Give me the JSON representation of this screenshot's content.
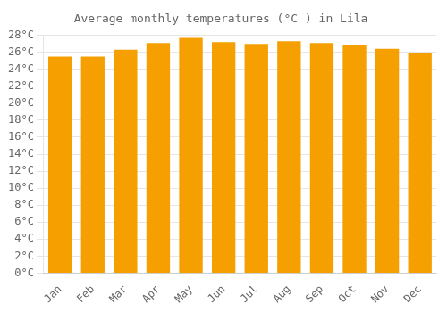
{
  "chart_data": {
    "type": "bar",
    "title": "Average monthly temperatures (°C ) in Lila",
    "categories": [
      "Jan",
      "Feb",
      "Mar",
      "Apr",
      "May",
      "Jun",
      "Jul",
      "Aug",
      "Sep",
      "Oct",
      "Nov",
      "Dec"
    ],
    "values": [
      25.5,
      25.5,
      26.3,
      27.1,
      27.7,
      27.2,
      27.0,
      27.3,
      27.1,
      26.9,
      26.4,
      25.9
    ],
    "color": "#F5A000",
    "ylim": [
      0,
      28
    ],
    "yticks": [
      {
        "value": 0,
        "label": "0°C"
      },
      {
        "value": 2,
        "label": "2°C"
      },
      {
        "value": 4,
        "label": "4°C"
      },
      {
        "value": 6,
        "label": "6°C"
      },
      {
        "value": 8,
        "label": "8°C"
      },
      {
        "value": 10,
        "label": "10°C"
      },
      {
        "value": 12,
        "label": "12°C"
      },
      {
        "value": 14,
        "label": "14°C"
      },
      {
        "value": 16,
        "label": "16°C"
      },
      {
        "value": 18,
        "label": "18°C"
      },
      {
        "value": 20,
        "label": "20°C"
      },
      {
        "value": 22,
        "label": "22°C"
      },
      {
        "value": 24,
        "label": "24°C"
      },
      {
        "value": 26,
        "label": "26°C"
      },
      {
        "value": 28,
        "label": "28°C"
      }
    ],
    "grid": true
  }
}
